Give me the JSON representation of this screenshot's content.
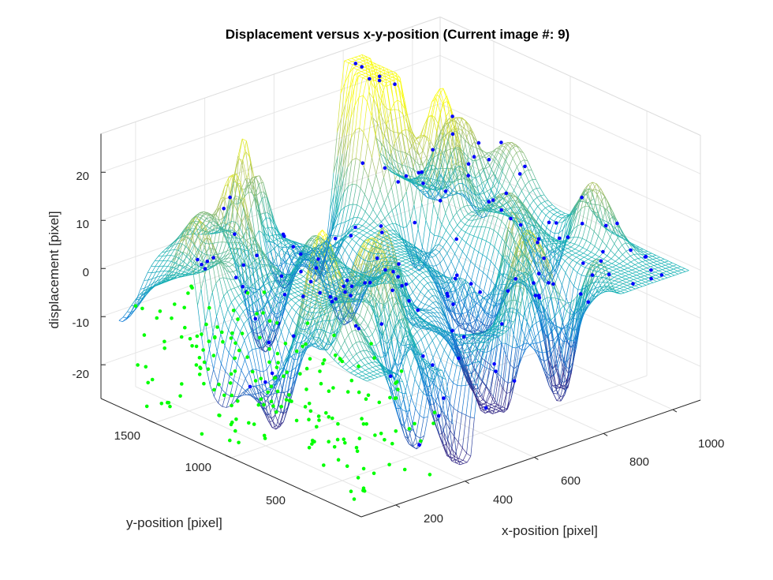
{
  "chart_data": {
    "type": "surface",
    "title": "Displacement versus x-y-position (Current image #: 9)",
    "xlabel": "x-position [pixel]",
    "ylabel": "y-position [pixel]",
    "zlabel": "displacement [pixel]",
    "x_ticks": [
      "200",
      "400",
      "600",
      "800",
      "1000"
    ],
    "y_ticks": [
      "500",
      "1000",
      "1500"
    ],
    "z_ticks": [
      "20",
      "10",
      "0",
      "-10",
      "-20"
    ],
    "xlim": [
      100,
      1080
    ],
    "ylim": [
      150,
      1850
    ],
    "zlim": [
      -27,
      28
    ],
    "grid": true,
    "colormap": "parula",
    "series": [
      {
        "kind": "surface",
        "style": "mesh"
      },
      {
        "kind": "scatter",
        "color": "#0000ff",
        "marker": "dot"
      },
      {
        "kind": "scatter",
        "color": "#00ff00",
        "marker": "dot"
      }
    ]
  }
}
